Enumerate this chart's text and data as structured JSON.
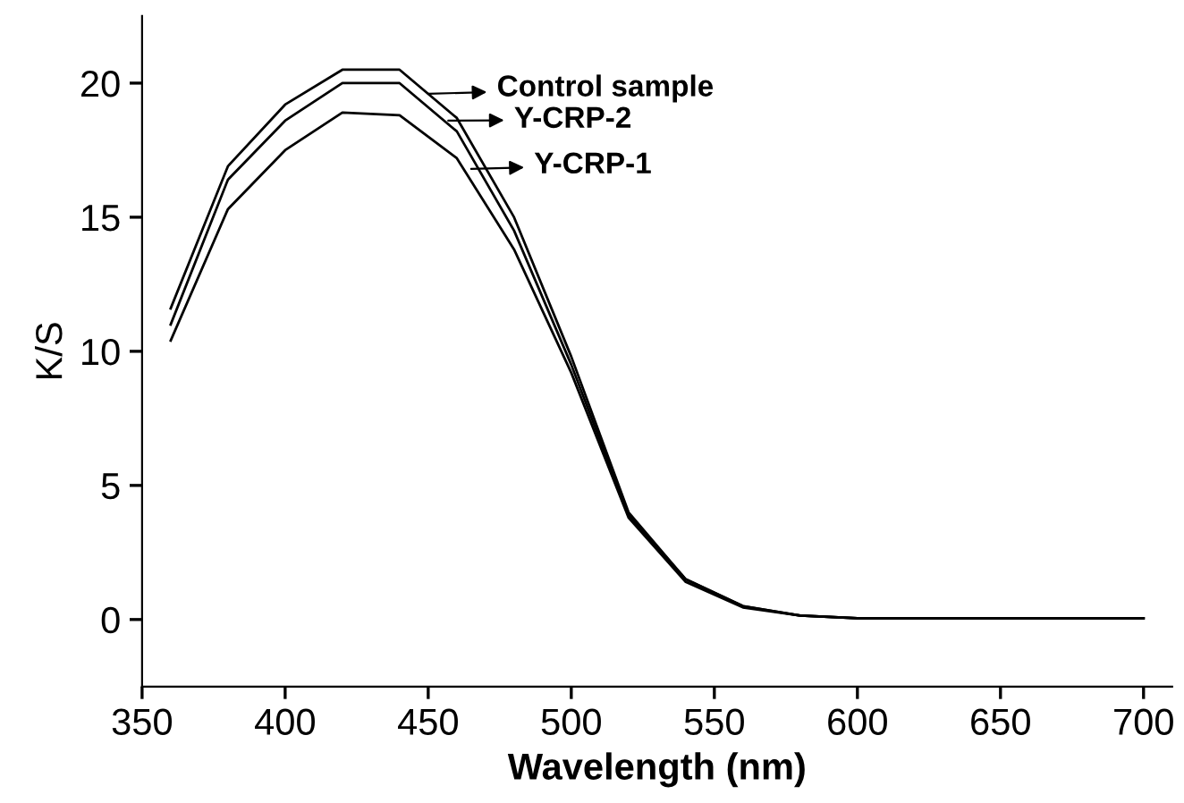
{
  "chart_data": {
    "type": "line",
    "xlabel": "Wavelength (nm)",
    "ylabel": "K/S",
    "x": [
      360,
      380,
      400,
      420,
      440,
      460,
      480,
      500,
      520,
      540,
      560,
      580,
      600,
      620,
      640,
      660,
      680,
      700
    ],
    "series": [
      {
        "color": "#000000",
        "values": [
          11.6,
          16.9,
          19.2,
          20.5,
          20.5,
          18.7,
          15.0,
          9.8,
          4.0,
          1.5,
          0.5,
          0.15,
          0.05,
          0.05,
          0.05,
          0.05,
          0.05,
          0.05
        ]
      },
      {
        "color": "#000000",
        "values": [
          11.0,
          16.4,
          18.6,
          20.0,
          20.0,
          18.2,
          14.5,
          9.5,
          3.9,
          1.5,
          0.5,
          0.15,
          0.05,
          0.05,
          0.05,
          0.05,
          0.05,
          0.05
        ]
      },
      {
        "color": "#000000",
        "values": [
          10.4,
          15.3,
          17.5,
          18.9,
          18.8,
          17.2,
          13.8,
          9.2,
          3.8,
          1.4,
          0.45,
          0.15,
          0.05,
          0.05,
          0.05,
          0.05,
          0.05,
          0.05
        ]
      }
    ],
    "annotations": [
      {
        "text": "Control sample",
        "x": 450,
        "y": 19.6
      },
      {
        "text": "Y-CRP-2",
        "x": 457,
        "y": 18.6
      },
      {
        "text": "Y-CRP-1",
        "x": 465,
        "y": 16.8
      }
    ],
    "xlim": [
      350,
      710
    ],
    "ylim": [
      -2.5,
      22.5
    ],
    "xticks": [
      350,
      400,
      450,
      500,
      550,
      600,
      650,
      700
    ],
    "yticks": [
      0,
      5,
      10,
      15,
      20
    ],
    "grid": false,
    "legend": false,
    "marker": "none",
    "line_style": "solid"
  }
}
